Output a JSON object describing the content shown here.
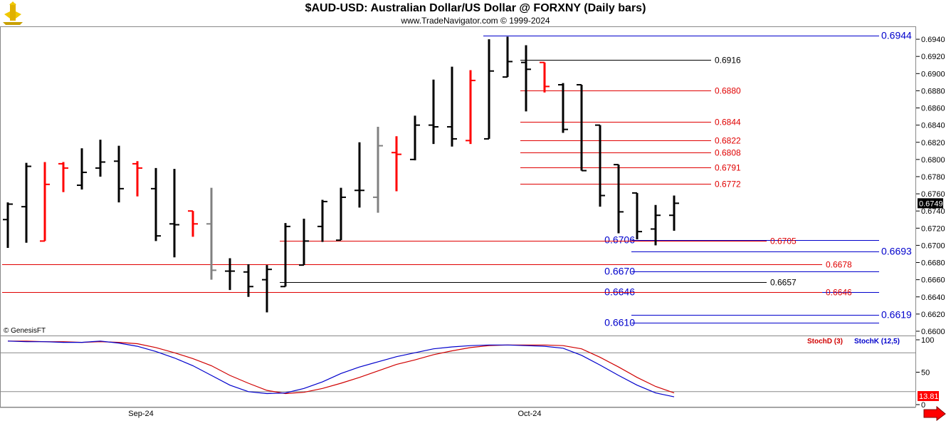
{
  "title": "$AUD-USD:  Australian Dollar/US Dollar @ FORXNY  (Daily bars)",
  "subtitle": "www.TradeNavigator.com © 1999-2024",
  "copyright": "© GenesisFT",
  "colors": {
    "up_bar": "#000000",
    "down_bar": "#ff0000",
    "neutral_bar": "#808080",
    "level_black": "#000000",
    "level_red": "#e00000",
    "level_blue": "#0000cc",
    "stoch_d": "#d00000",
    "stoch_k": "#0000cc",
    "last_price_bg": "#000000",
    "stoch_last_bg": "#ff0000",
    "arrow": "#ff0000"
  },
  "icons": {
    "logo": "genesis-trader-icon",
    "scroll_arrow": "right-arrow-icon"
  },
  "chart_data": [
    {
      "type": "ohlc",
      "title": "$AUD-USD:  Australian Dollar/US Dollar @ FORXNY  (Daily bars)",
      "ylim": [
        0.6595,
        0.6955
      ],
      "yticks": [
        "0.6940",
        "0.6920",
        "0.6900",
        "0.6880",
        "0.6860",
        "0.6840",
        "0.6820",
        "0.6800",
        "0.6780",
        "0.6760",
        "0.6740",
        "0.6720",
        "0.6700",
        "0.6680",
        "0.6660",
        "0.6640",
        "0.6620",
        "0.6600"
      ],
      "xticks": [
        {
          "label": "Sep-24",
          "index": 7
        },
        {
          "label": "Oct-24",
          "index": 28
        }
      ],
      "last_price": "0.6749",
      "bars": [
        {
          "o": 0.673,
          "h": 0.675,
          "l": 0.6697,
          "c": 0.6748,
          "color": "up"
        },
        {
          "o": 0.6745,
          "h": 0.6796,
          "l": 0.6703,
          "c": 0.6792,
          "color": "up"
        },
        {
          "o": 0.6705,
          "h": 0.6797,
          "l": 0.6705,
          "c": 0.6771,
          "color": "down"
        },
        {
          "o": 0.6795,
          "h": 0.6797,
          "l": 0.6762,
          "c": 0.679,
          "color": "down"
        },
        {
          "o": 0.677,
          "h": 0.6813,
          "l": 0.6765,
          "c": 0.6785,
          "color": "up"
        },
        {
          "o": 0.679,
          "h": 0.6823,
          "l": 0.678,
          "c": 0.6797,
          "color": "up"
        },
        {
          "o": 0.6798,
          "h": 0.6816,
          "l": 0.675,
          "c": 0.6766,
          "color": "up"
        },
        {
          "o": 0.6795,
          "h": 0.6798,
          "l": 0.6757,
          "c": 0.679,
          "color": "down"
        },
        {
          "o": 0.6766,
          "h": 0.679,
          "l": 0.6705,
          "c": 0.6711,
          "color": "up"
        },
        {
          "o": 0.6725,
          "h": 0.6789,
          "l": 0.6686,
          "c": 0.6724,
          "color": "up"
        },
        {
          "o": 0.674,
          "h": 0.674,
          "l": 0.671,
          "c": 0.6725,
          "color": "down"
        },
        {
          "o": 0.6725,
          "h": 0.6767,
          "l": 0.666,
          "c": 0.6671,
          "color": "neutral"
        },
        {
          "o": 0.667,
          "h": 0.6685,
          "l": 0.6648,
          "c": 0.667,
          "color": "up"
        },
        {
          "o": 0.6669,
          "h": 0.6678,
          "l": 0.664,
          "c": 0.6652,
          "color": "up"
        },
        {
          "o": 0.666,
          "h": 0.6677,
          "l": 0.6622,
          "c": 0.6672,
          "color": "up"
        },
        {
          "o": 0.6652,
          "h": 0.6726,
          "l": 0.6652,
          "c": 0.6722,
          "color": "up"
        },
        {
          "o": 0.6677,
          "h": 0.6731,
          "l": 0.6677,
          "c": 0.6705,
          "color": "up"
        },
        {
          "o": 0.6722,
          "h": 0.6753,
          "l": 0.6704,
          "c": 0.6751,
          "color": "up"
        },
        {
          "o": 0.6706,
          "h": 0.6767,
          "l": 0.6706,
          "c": 0.6756,
          "color": "up"
        },
        {
          "o": 0.6764,
          "h": 0.682,
          "l": 0.6744,
          "c": 0.6764,
          "color": "up"
        },
        {
          "o": 0.6756,
          "h": 0.6838,
          "l": 0.6738,
          "c": 0.6816,
          "color": "neutral"
        },
        {
          "o": 0.6808,
          "h": 0.6827,
          "l": 0.6763,
          "c": 0.6806,
          "color": "down"
        },
        {
          "o": 0.68,
          "h": 0.6851,
          "l": 0.6799,
          "c": 0.684,
          "color": "up"
        },
        {
          "o": 0.684,
          "h": 0.6893,
          "l": 0.6818,
          "c": 0.6838,
          "color": "up"
        },
        {
          "o": 0.6838,
          "h": 0.6908,
          "l": 0.6815,
          "c": 0.6824,
          "color": "up"
        },
        {
          "o": 0.6822,
          "h": 0.6904,
          "l": 0.6818,
          "c": 0.6892,
          "color": "down"
        },
        {
          "o": 0.6824,
          "h": 0.694,
          "l": 0.6824,
          "c": 0.6903,
          "color": "up"
        },
        {
          "o": 0.6896,
          "h": 0.6943,
          "l": 0.6896,
          "c": 0.6914,
          "color": "up"
        },
        {
          "o": 0.6913,
          "h": 0.6933,
          "l": 0.6856,
          "c": 0.6905,
          "color": "up"
        },
        {
          "o": 0.6913,
          "h": 0.6913,
          "l": 0.6878,
          "c": 0.6885,
          "color": "down"
        },
        {
          "o": 0.6887,
          "h": 0.6889,
          "l": 0.6831,
          "c": 0.6835,
          "color": "up"
        },
        {
          "o": 0.6887,
          "h": 0.6887,
          "l": 0.6787,
          "c": 0.6787,
          "color": "up"
        },
        {
          "o": 0.684,
          "h": 0.684,
          "l": 0.6745,
          "c": 0.6758,
          "color": "up"
        },
        {
          "o": 0.6794,
          "h": 0.6794,
          "l": 0.6714,
          "c": 0.6739,
          "color": "up"
        },
        {
          "o": 0.6761,
          "h": 0.6761,
          "l": 0.6707,
          "c": 0.6716,
          "color": "up"
        },
        {
          "o": 0.6719,
          "h": 0.6747,
          "l": 0.67,
          "c": 0.6735,
          "color": "up"
        },
        {
          "o": 0.6735,
          "h": 0.6758,
          "l": 0.6717,
          "c": 0.6749,
          "color": "up"
        }
      ],
      "levels": [
        {
          "value": 0.6944,
          "label": "0.6944",
          "color": "blue",
          "start": 26,
          "end": "edge",
          "label_pos": "right"
        },
        {
          "value": 0.6916,
          "label": "0.6916",
          "color": "black",
          "start": 28,
          "end": 38,
          "label_pos": "end"
        },
        {
          "value": 0.688,
          "label": "0.6880",
          "color": "red",
          "start": 28,
          "end": 38,
          "label_pos": "end"
        },
        {
          "value": 0.6844,
          "label": "0.6844",
          "color": "red",
          "start": 28,
          "end": 38,
          "label_pos": "end"
        },
        {
          "value": 0.6822,
          "label": "0.6822",
          "color": "red",
          "start": 28,
          "end": 38,
          "label_pos": "end"
        },
        {
          "value": 0.6808,
          "label": "0.6808",
          "color": "red",
          "start": 28,
          "end": 38,
          "label_pos": "end"
        },
        {
          "value": 0.6791,
          "label": "0.6791",
          "color": "red",
          "start": 28,
          "end": 38,
          "label_pos": "end"
        },
        {
          "value": 0.6772,
          "label": "0.6772",
          "color": "red",
          "start": 28,
          "end": 38,
          "label_pos": "end"
        },
        {
          "value": 0.6706,
          "label": "0.6706",
          "color": "blue",
          "start": 34,
          "end": "edge",
          "label_pos": "left"
        },
        {
          "value": 0.6705,
          "label": "0.6705",
          "color": "red",
          "start": 15,
          "end": 41,
          "label_pos": "end"
        },
        {
          "value": 0.6693,
          "label": "0.6693",
          "color": "blue",
          "start": 34,
          "end": "edge",
          "label_pos": "right"
        },
        {
          "value": 0.6678,
          "label": "0.6678",
          "color": "red",
          "start": 0,
          "end": 44,
          "label_pos": "end"
        },
        {
          "value": 0.667,
          "label": "0.6670",
          "color": "blue",
          "start": 34,
          "end": "edge",
          "label_pos": "left"
        },
        {
          "value": 0.6657,
          "label": "0.6657",
          "color": "black",
          "start": 15,
          "end": 41,
          "label_pos": "end"
        },
        {
          "value": 0.6646,
          "label": "0.6646",
          "color": "blue",
          "start": 34,
          "end": "edge",
          "label_pos": "left"
        },
        {
          "value": 0.6646,
          "label": "0.6646",
          "color": "red",
          "start": 0,
          "end": 44,
          "label_pos": "end"
        },
        {
          "value": 0.6619,
          "label": "0.6619",
          "color": "blue",
          "start": 34,
          "end": "edge",
          "label_pos": "right"
        },
        {
          "value": 0.661,
          "label": "0.6610",
          "color": "blue",
          "start": 34,
          "end": "edge",
          "label_pos": "left"
        }
      ]
    },
    {
      "type": "line",
      "title": "",
      "ylim": [
        0,
        100
      ],
      "yticks": [
        "100",
        "50",
        "0"
      ],
      "gridlines": [
        80,
        20
      ],
      "last_value": "13.81",
      "series": [
        {
          "name": "StochD (3)",
          "color": "red",
          "values": [
            98,
            98,
            97,
            97,
            96,
            97,
            96,
            94,
            88,
            80,
            71,
            60,
            45,
            33,
            22,
            17,
            19,
            25,
            33,
            42,
            52,
            62,
            69,
            77,
            83,
            88,
            91,
            92,
            92,
            92,
            91,
            86,
            73,
            58,
            42,
            28,
            18
          ]
        },
        {
          "name": "StochK (12,5)",
          "color": "blue",
          "values": [
            98,
            97,
            97,
            96,
            96,
            98,
            95,
            90,
            82,
            72,
            60,
            45,
            30,
            20,
            17,
            18,
            25,
            35,
            48,
            58,
            66,
            74,
            80,
            86,
            89,
            91,
            92,
            92,
            91,
            90,
            87,
            76,
            61,
            45,
            30,
            18,
            12
          ]
        }
      ]
    }
  ]
}
